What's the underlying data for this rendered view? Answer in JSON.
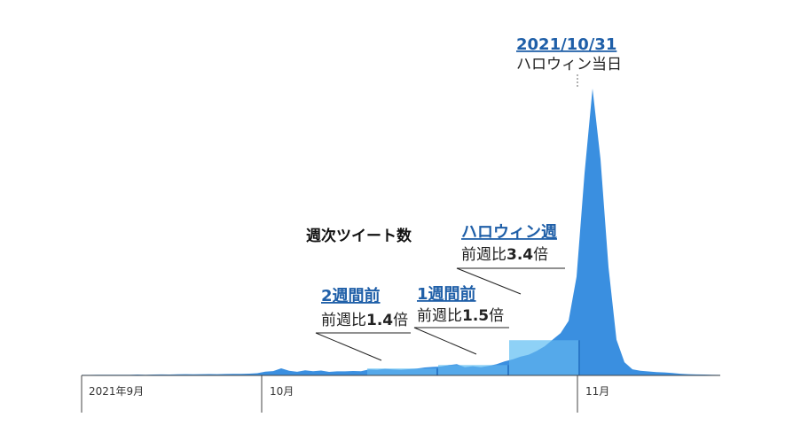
{
  "chart_data": {
    "type": "area",
    "title": "週次ツイート数",
    "xlabel": "",
    "ylabel": "",
    "grid": false,
    "x_tick_labels": [
      "2021年9月",
      "10月",
      "11月"
    ],
    "series": [
      {
        "values": [
          0.6,
          0.6,
          0.7,
          0.7,
          0.8,
          0.7,
          0.8,
          0.9,
          0.8,
          0.9,
          1.0,
          0.9,
          1.1,
          1.3,
          1.1,
          1.3,
          1.4,
          1.3,
          1.5,
          1.6,
          1.7,
          1.9,
          2.4,
          4.0,
          4.6,
          7.5,
          5.0,
          3.9,
          5.4,
          4.5,
          5.2,
          3.8,
          4.3,
          4.3,
          4.7,
          4.4,
          6.4,
          6.0,
          7.0,
          6.4,
          6.0,
          6.6,
          7.3,
          8.5,
          9.0,
          9.4,
          11.0,
          12.0,
          8.8,
          9.8,
          8.8,
          10.2,
          12.0,
          15.0,
          17.0,
          20.0,
          22.0,
          26.0,
          31.0,
          38.0,
          45.0,
          58.0,
          105.0,
          215.0,
          305.0,
          230.0,
          115.0,
          38.0,
          14.0,
          6.5,
          5.0,
          4.2,
          3.5,
          3.2,
          2.5,
          1.8,
          1.3,
          1.0,
          0.9,
          0.7,
          0.6
        ]
      }
    ],
    "weekly_totals": [
      {
        "week": "2週間前",
        "value": 7.3
      },
      {
        "week": "1週間前",
        "value": 11.0
      },
      {
        "week": "ハロウィン週",
        "value": 37.4
      }
    ],
    "ylim": [
      0,
      320
    ],
    "annotations": [
      {
        "title": "2021/10/31",
        "text": "ハロウィン当日"
      },
      {
        "title": "2週間前",
        "prefix": "前週比",
        "value": "1.4",
        "suffix": "倍"
      },
      {
        "title": "1週間前",
        "prefix": "前週比",
        "value": "1.5",
        "suffix": "倍"
      },
      {
        "title": "ハロウィン週",
        "prefix": "前週比",
        "value": "3.4",
        "suffix": "倍"
      }
    ]
  },
  "colors": {
    "area": "#3a8fe0",
    "week_bar_fill": "#b8e6fb",
    "week_bar_overlay": "#6cc0f3",
    "week_bar_edge": "#2a78c8",
    "axis": "#444444",
    "annotation_title": "#1f5fa8"
  }
}
